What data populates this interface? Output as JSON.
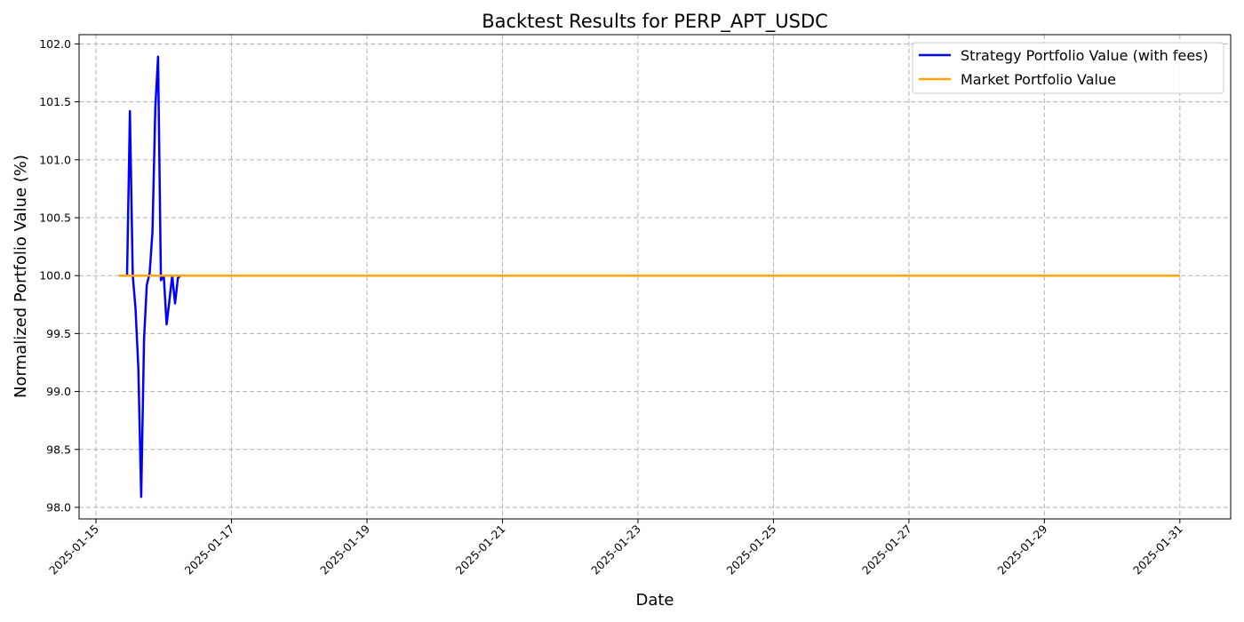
{
  "chart_data": {
    "type": "line",
    "title": "Backtest Results for PERP_APT_USDC",
    "xlabel": "Date",
    "ylabel": "Normalized Portfolio Value (%)",
    "xlim": [
      "2025-01-14 18:00",
      "2025-01-31 18:00"
    ],
    "ylim": [
      97.9,
      102.08
    ],
    "x_ticks": [
      "2025-01-15",
      "2025-01-17",
      "2025-01-19",
      "2025-01-21",
      "2025-01-23",
      "2025-01-25",
      "2025-01-27",
      "2025-01-29",
      "2025-01-31"
    ],
    "y_ticks": [
      "98.0",
      "98.5",
      "99.0",
      "99.5",
      "100.0",
      "100.5",
      "101.0",
      "101.5",
      "102.0"
    ],
    "grid": true,
    "legend_position": "top-right",
    "series": [
      {
        "name": "Strategy Portfolio Value (with fees)",
        "color": "#0000ff",
        "x": [
          "2025-01-15 08:00",
          "2025-01-15 11:00",
          "2025-01-15 12:00",
          "2025-01-15 13:00",
          "2025-01-15 14:00",
          "2025-01-15 15:00",
          "2025-01-15 16:00",
          "2025-01-15 17:00",
          "2025-01-15 18:00",
          "2025-01-15 19:00",
          "2025-01-15 20:00",
          "2025-01-15 21:00",
          "2025-01-15 22:00",
          "2025-01-15 23:00",
          "2025-01-16 00:00",
          "2025-01-16 01:00",
          "2025-01-16 02:00",
          "2025-01-16 03:00",
          "2025-01-16 04:00",
          "2025-01-16 05:00",
          "2025-01-16 06:00"
        ],
        "y": [
          100.0,
          100.0,
          101.42,
          100.0,
          99.72,
          99.2,
          98.09,
          99.45,
          99.92,
          100.02,
          100.38,
          101.45,
          101.89,
          99.96,
          100.0,
          99.58,
          99.78,
          100.0,
          99.76,
          99.98,
          100.0
        ]
      },
      {
        "name": "Market Portfolio Value",
        "color": "#ffa500",
        "x": [
          "2025-01-15 08:00",
          "2025-01-31 00:00"
        ],
        "y": [
          100.0,
          100.0
        ]
      }
    ]
  }
}
